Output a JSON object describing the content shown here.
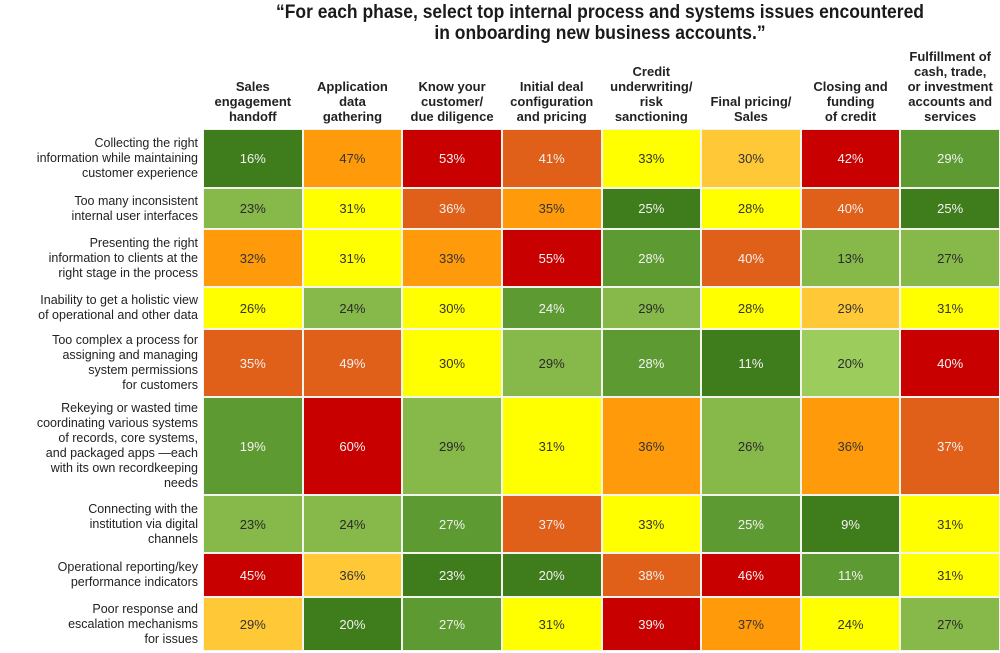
{
  "chart_data": {
    "type": "heatmap",
    "title": "“For each phase, select top internal process and systems issues encountered\nin onboarding new business accounts.”",
    "columns": [
      "Sales\nengagement\nhandoff",
      "Application\ndata\ngathering",
      "Know your\ncustomer/\ndue diligence",
      "Initial deal\nconfiguration\nand pricing",
      "Credit\nunderwriting/\nrisk\nsanctioning",
      "Final pricing/\nSales",
      "Closing and\nfunding\nof credit",
      "Fulfillment of\ncash, trade,\nor investment\naccounts and\nservices"
    ],
    "rows": [
      "Collecting the right\ninformation while maintaining\ncustomer experience",
      "Too many inconsistent\ninternal user interfaces",
      "Presenting the right\ninformation to clients at the\nright stage in the process",
      "Inability to get a holistic view\nof operational and other data",
      "Too complex a process for\nassigning and managing\nsystem permissions\nfor customers",
      "Rekeying or wasted time\ncoordinating various systems\nof records, core systems,\nand packaged apps —each\nwith its own recordkeeping\nneeds",
      "Connecting with the\ninstitution via digital\nchannels",
      "Operational reporting/key\nperformance indicators",
      "Poor response and\nescalation mechanisms\nfor issues"
    ],
    "values": [
      [
        16,
        47,
        53,
        41,
        33,
        30,
        42,
        29
      ],
      [
        23,
        31,
        36,
        35,
        25,
        28,
        40,
        25
      ],
      [
        32,
        31,
        33,
        55,
        28,
        40,
        13,
        27
      ],
      [
        26,
        24,
        30,
        24,
        29,
        28,
        29,
        31
      ],
      [
        35,
        49,
        30,
        29,
        28,
        11,
        20,
        40
      ],
      [
        19,
        60,
        29,
        31,
        36,
        26,
        36,
        37
      ],
      [
        23,
        24,
        27,
        37,
        33,
        25,
        9,
        31
      ],
      [
        45,
        36,
        23,
        20,
        38,
        46,
        11,
        31
      ],
      [
        29,
        20,
        27,
        31,
        39,
        37,
        24,
        27
      ]
    ],
    "color_levels": [
      [
        "dkgreen",
        "orange",
        "red",
        "dkorange",
        "yellow",
        "ltorange",
        "red",
        "midgreen"
      ],
      [
        "ltgreen",
        "yellow",
        "dkorange",
        "orange",
        "dkgreen",
        "yellow",
        "dkorange",
        "dkgreen"
      ],
      [
        "orange",
        "yellow",
        "orange",
        "red",
        "midgreen",
        "dkorange",
        "ltgreen",
        "ltgreen"
      ],
      [
        "yellow",
        "ltgreen",
        "yellow",
        "midgreen",
        "ltgreen",
        "yellow",
        "ltorange",
        "yellow"
      ],
      [
        "dkorange",
        "dkorange",
        "yellow",
        "ltgreen",
        "midgreen",
        "dkgreen",
        "paleGreen",
        "red"
      ],
      [
        "midgreen",
        "red",
        "ltgreen",
        "yellow",
        "orange",
        "ltgreen",
        "orange",
        "dkorange"
      ],
      [
        "ltgreen",
        "ltgreen",
        "midgreen",
        "dkorange",
        "yellow",
        "midgreen",
        "dkgreen",
        "yellow"
      ],
      [
        "red",
        "ltorange",
        "dkgreen",
        "dkgreen",
        "dkorange",
        "red",
        "midgreen",
        "yellow"
      ],
      [
        "ltorange",
        "dkgreen",
        "midgreen",
        "yellow",
        "red",
        "orange",
        "yellow",
        "ltgreen"
      ]
    ],
    "palette": {
      "dkgreen": "#3f7d1c",
      "midgreen": "#5e9a32",
      "ltgreen": "#86b84a",
      "paleGreen": "#9ccc5c",
      "yellow": "#ffff00",
      "ltorange": "#ffc837",
      "orange": "#ff9a0a",
      "dkorange": "#e0601a",
      "red": "#c80000"
    },
    "text_colors": {
      "dkgreen": "#f2f2f2",
      "midgreen": "#f2f2f2",
      "ltgreen": "#2a2a2a",
      "paleGreen": "#2a2a2a",
      "yellow": "#333333",
      "ltorange": "#333333",
      "orange": "#333333",
      "dkorange": "#f2f2f2",
      "red": "#f4f4f4"
    },
    "value_suffix": "%"
  }
}
